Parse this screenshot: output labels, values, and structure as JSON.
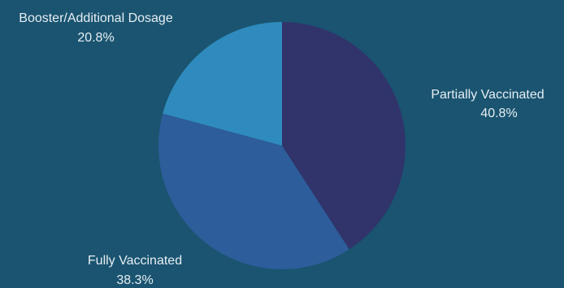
{
  "chart_data": {
    "type": "pie",
    "title": "",
    "slices": [
      {
        "label": "Partially Vaccinated",
        "value_label": "40.8%",
        "value": 40.8,
        "color": "#30346b"
      },
      {
        "label": "Fully Vaccinated",
        "value_label": "38.3%",
        "value": 38.3,
        "color": "#2d5d9a"
      },
      {
        "label": "Booster/Additional Dosage",
        "value_label": "20.8%",
        "value": 20.8,
        "color": "#2f8bbd"
      }
    ],
    "background": "#1a5470",
    "legend": "none",
    "label_color": "#e6eef3"
  }
}
